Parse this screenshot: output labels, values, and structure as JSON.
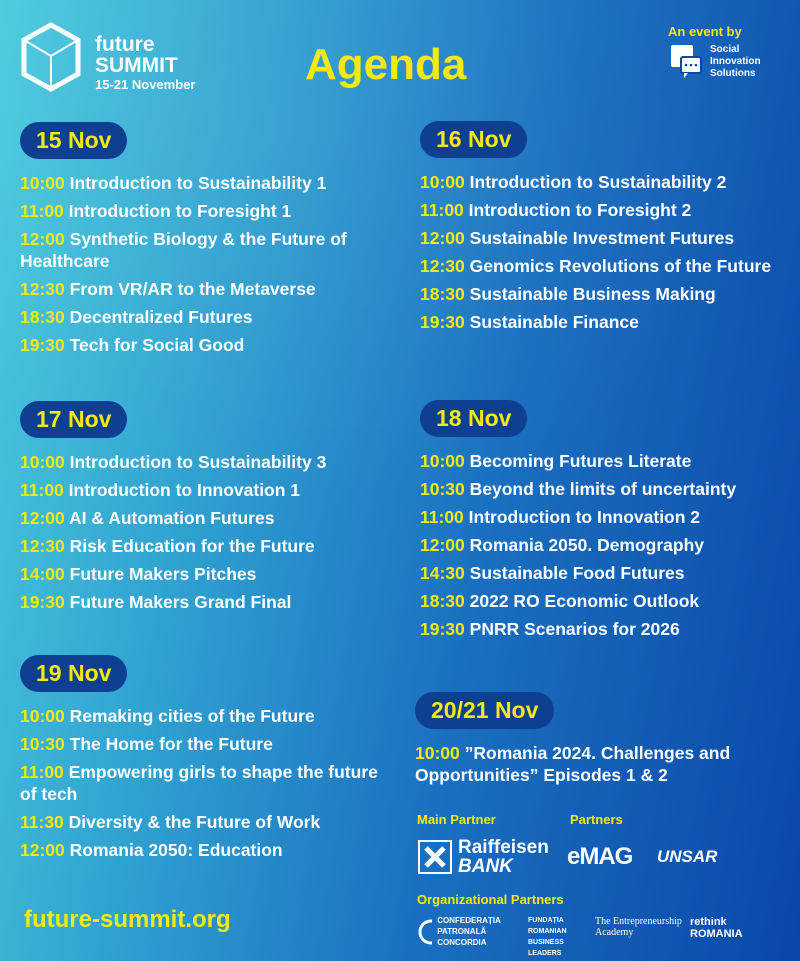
{
  "header": {
    "logo_line1": "future",
    "logo_line2": "SUMMIT",
    "dates": "15-21 November",
    "title": "Agenda",
    "event_by": "An event by",
    "organizer": [
      "Social",
      "Innovation",
      "Solutions"
    ]
  },
  "colors": {
    "accent": "#f5ea0f",
    "pill": "#0e3f90",
    "bg_left": "#4ccbdd",
    "bg_right": "#0a47a8"
  },
  "days": [
    {
      "label": "15 Nov",
      "items": [
        {
          "time": "10:00",
          "title": "Introduction to Sustainability 1"
        },
        {
          "time": "11:00",
          "title": "Introduction to Foresight 1"
        },
        {
          "time": "12:00",
          "title": "Synthetic Biology & the Future of Healthcare"
        },
        {
          "time": "12:30",
          "title": "From VR/AR to the Metaverse"
        },
        {
          "time": "18:30",
          "title": "Decentralized Futures"
        },
        {
          "time": "19:30",
          "title": "Tech for Social Good"
        }
      ]
    },
    {
      "label": "16 Nov",
      "items": [
        {
          "time": "10:00",
          "title": "Introduction to Sustainability 2"
        },
        {
          "time": "11:00",
          "title": "Introduction to Foresight 2"
        },
        {
          "time": "12:00",
          "title": "Sustainable Investment Futures"
        },
        {
          "time": "12:30",
          "title": "Genomics Revolutions of the Future"
        },
        {
          "time": "18:30",
          "title": "Sustainable Business Making"
        },
        {
          "time": "19:30",
          "title": "Sustainable Finance"
        }
      ]
    },
    {
      "label": "17 Nov",
      "items": [
        {
          "time": "10:00",
          "title": "Introduction to Sustainability 3"
        },
        {
          "time": "11:00",
          "title": "Introduction to Innovation 1"
        },
        {
          "time": "12:00",
          "title": "AI & Automation Futures"
        },
        {
          "time": "12:30",
          "title": "Risk Education for the Future"
        },
        {
          "time": "14:00",
          "title": "Future Makers Pitches"
        },
        {
          "time": "19:30",
          "title": "Future Makers Grand Final"
        }
      ]
    },
    {
      "label": "18 Nov",
      "items": [
        {
          "time": "10:00",
          "title": "Becoming Futures Literate"
        },
        {
          "time": "10:30",
          "title": "Beyond the limits of uncertainty"
        },
        {
          "time": "11:00",
          "title": "Introduction to Innovation 2"
        },
        {
          "time": "12:00",
          "title": "Romania 2050. Demography"
        },
        {
          "time": "14:30",
          "title": "Sustainable Food Futures"
        },
        {
          "time": "18:30",
          "title": "2022 RO Economic Outlook"
        },
        {
          "time": "19:30",
          "title": "PNRR Scenarios for 2026"
        }
      ]
    },
    {
      "label": "19 Nov",
      "items": [
        {
          "time": "10:00",
          "title": "Remaking cities of the Future"
        },
        {
          "time": "10:30",
          "title": "The Home for the Future"
        },
        {
          "time": "11:00",
          "title": "Empowering girls to shape the future of tech"
        },
        {
          "time": "11:30",
          "title": "Diversity & the Future of Work"
        },
        {
          "time": "12:00",
          "title": "Romania 2050: Education"
        }
      ]
    },
    {
      "label": "20/21 Nov",
      "items": [
        {
          "time": "10:00",
          "title": "”Romania 2024. Challenges and Opportunities” Episodes 1 & 2"
        }
      ]
    }
  ],
  "footer": {
    "website": "future-summit.org",
    "main_partner_label": "Main Partner",
    "partners_label": "Partners",
    "org_partners_label": "Organizational Partners",
    "main_partner": [
      "Raiffeisen",
      "BANK"
    ],
    "partners": [
      "eMAG",
      "UNSAR"
    ],
    "org_partners": [
      "CONFEDERAȚIA PATRONALĂ CONCORDIA",
      "FUNDAȚIA ROMANIAN BUSINESS LEADERS",
      "The Entrepreneurship Academy",
      "rethink ROMANIA"
    ]
  }
}
